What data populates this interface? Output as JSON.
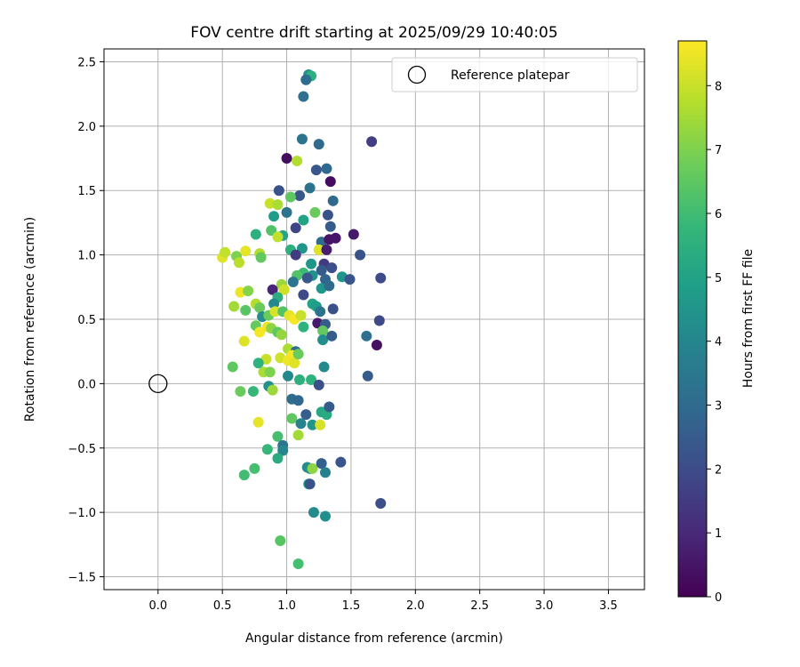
{
  "chart_data": {
    "type": "scatter",
    "title": "FOV centre drift starting at 2025/09/29 10:40:05",
    "xlabel": "Angular distance from reference (arcmin)",
    "ylabel": "Rotation from reference (arcmin)",
    "xlim": [
      -0.42,
      3.78
    ],
    "ylim": [
      -1.6,
      2.6
    ],
    "xticks": [
      0.0,
      0.5,
      1.0,
      1.5,
      2.0,
      2.5,
      3.0,
      3.5
    ],
    "yticks": [
      -1.5,
      -1.0,
      -0.5,
      0.0,
      0.5,
      1.0,
      1.5,
      2.0,
      2.5
    ],
    "grid": true,
    "legend": {
      "position": "top-right",
      "entries": [
        "Reference platepar"
      ]
    },
    "reference_point": {
      "x": 0.0,
      "y": 0.0
    },
    "colorbar": {
      "label": "Hours from first FF file",
      "colormap": "viridis",
      "range": [
        0,
        8.7
      ],
      "ticks": [
        0,
        1,
        2,
        3,
        4,
        5,
        6,
        7,
        8
      ]
    },
    "points": [
      [
        1.17,
        2.4,
        4.3
      ],
      [
        1.19,
        2.39,
        5.5
      ],
      [
        1.15,
        2.36,
        3.1
      ],
      [
        1.13,
        2.23,
        3.2
      ],
      [
        1.12,
        1.9,
        3.3
      ],
      [
        1.25,
        1.86,
        3.0
      ],
      [
        1.66,
        1.88,
        1.6
      ],
      [
        1.0,
        1.75,
        0.3
      ],
      [
        1.08,
        1.73,
        7.7
      ],
      [
        1.23,
        1.66,
        2.4
      ],
      [
        1.31,
        1.67,
        2.9
      ],
      [
        1.34,
        1.57,
        0.3
      ],
      [
        1.18,
        1.52,
        3.3
      ],
      [
        0.94,
        1.5,
        2.2
      ],
      [
        1.1,
        1.46,
        2.4
      ],
      [
        1.03,
        1.45,
        6.5
      ],
      [
        1.36,
        1.42,
        3.0
      ],
      [
        0.87,
        1.4,
        8.0
      ],
      [
        0.93,
        1.39,
        7.6
      ],
      [
        1.0,
        1.33,
        3.3
      ],
      [
        1.22,
        1.33,
        6.7
      ],
      [
        1.32,
        1.31,
        2.2
      ],
      [
        0.9,
        1.3,
        4.8
      ],
      [
        1.13,
        1.27,
        5.0
      ],
      [
        1.34,
        1.22,
        2.5
      ],
      [
        1.07,
        1.21,
        1.8
      ],
      [
        0.88,
        1.19,
        6.3
      ],
      [
        0.97,
        1.15,
        5.1
      ],
      [
        0.76,
        1.16,
        5.5
      ],
      [
        0.93,
        1.14,
        7.9
      ],
      [
        1.27,
        1.1,
        3.0
      ],
      [
        1.33,
        1.12,
        0.5
      ],
      [
        1.38,
        1.13,
        0.5
      ],
      [
        1.52,
        1.16,
        0.6
      ],
      [
        1.12,
        1.05,
        4.5
      ],
      [
        1.03,
        1.04,
        5.5
      ],
      [
        1.25,
        1.04,
        8.3
      ],
      [
        1.31,
        1.04,
        0.7
      ],
      [
        0.5,
        0.98,
        8.3
      ],
      [
        0.52,
        1.02,
        7.9
      ],
      [
        0.61,
        0.99,
        7.0
      ],
      [
        0.68,
        1.03,
        8.4
      ],
      [
        0.79,
        1.01,
        7.7
      ],
      [
        0.8,
        0.98,
        6.6
      ],
      [
        0.63,
        0.94,
        7.8
      ],
      [
        1.07,
        1.0,
        1.5
      ],
      [
        1.57,
        1.0,
        2.2
      ],
      [
        1.19,
        0.93,
        4.6
      ],
      [
        1.29,
        0.93,
        1.5
      ],
      [
        1.35,
        0.9,
        2.1
      ],
      [
        1.27,
        0.88,
        2.5
      ],
      [
        1.13,
        0.86,
        5.9
      ],
      [
        1.08,
        0.84,
        6.3
      ],
      [
        1.2,
        0.84,
        4.4
      ],
      [
        1.16,
        0.82,
        2.4
      ],
      [
        1.3,
        0.81,
        2.8
      ],
      [
        1.43,
        0.83,
        4.5
      ],
      [
        1.49,
        0.81,
        2.3
      ],
      [
        1.73,
        0.82,
        2.0
      ],
      [
        1.05,
        0.79,
        3.4
      ],
      [
        0.96,
        0.77,
        7.4
      ],
      [
        0.89,
        0.73,
        0.9
      ],
      [
        0.98,
        0.73,
        8.1
      ],
      [
        0.64,
        0.71,
        8.5
      ],
      [
        0.7,
        0.72,
        7.1
      ],
      [
        1.27,
        0.74,
        4.5
      ],
      [
        1.33,
        0.76,
        3.0
      ],
      [
        1.13,
        0.69,
        1.9
      ],
      [
        0.93,
        0.67,
        5.4
      ],
      [
        0.9,
        0.62,
        4.1
      ],
      [
        0.76,
        0.62,
        7.7
      ],
      [
        0.79,
        0.59,
        6.7
      ],
      [
        0.59,
        0.6,
        7.5
      ],
      [
        0.68,
        0.57,
        6.4
      ],
      [
        1.2,
        0.62,
        5.0
      ],
      [
        1.23,
        0.6,
        4.8
      ],
      [
        1.26,
        0.56,
        3.3
      ],
      [
        0.81,
        0.52,
        4.2
      ],
      [
        0.86,
        0.53,
        6.7
      ],
      [
        0.91,
        0.56,
        8.2
      ],
      [
        0.97,
        0.56,
        6.3
      ],
      [
        1.02,
        0.53,
        8.4
      ],
      [
        1.06,
        0.5,
        8.6
      ],
      [
        1.11,
        0.53,
        8.0
      ],
      [
        1.36,
        0.58,
        2.2
      ],
      [
        1.24,
        0.47,
        0.6
      ],
      [
        1.3,
        0.46,
        2.5
      ],
      [
        1.28,
        0.41,
        6.6
      ],
      [
        1.28,
        0.34,
        4.3
      ],
      [
        1.35,
        0.37,
        2.5
      ],
      [
        0.76,
        0.45,
        6.6
      ],
      [
        0.79,
        0.4,
        8.6
      ],
      [
        0.85,
        0.44,
        8.5
      ],
      [
        0.88,
        0.43,
        7.2
      ],
      [
        0.93,
        0.4,
        6.5
      ],
      [
        0.96,
        0.38,
        7.3
      ],
      [
        1.13,
        0.44,
        5.6
      ],
      [
        1.72,
        0.49,
        1.9
      ],
      [
        1.62,
        0.37,
        3.2
      ],
      [
        1.7,
        0.3,
        0.4
      ],
      [
        0.67,
        0.33,
        8.3
      ],
      [
        1.01,
        0.27,
        7.6
      ],
      [
        1.07,
        0.25,
        3.0
      ],
      [
        1.04,
        0.22,
        8.6
      ],
      [
        0.95,
        0.2,
        8.1
      ],
      [
        1.01,
        0.18,
        8.5
      ],
      [
        1.06,
        0.16,
        8.3
      ],
      [
        1.09,
        0.23,
        6.7
      ],
      [
        0.84,
        0.19,
        8.0
      ],
      [
        0.78,
        0.16,
        5.6
      ],
      [
        0.58,
        0.13,
        6.5
      ],
      [
        0.82,
        0.09,
        7.6
      ],
      [
        0.87,
        0.09,
        7.0
      ],
      [
        1.01,
        0.06,
        4.1
      ],
      [
        1.1,
        0.03,
        5.5
      ],
      [
        1.19,
        0.03,
        5.6
      ],
      [
        1.29,
        0.13,
        4.1
      ],
      [
        1.25,
        -0.01,
        2.1
      ],
      [
        1.63,
        0.06,
        2.5
      ],
      [
        0.64,
        -0.06,
        6.7
      ],
      [
        0.74,
        -0.06,
        5.8
      ],
      [
        0.86,
        -0.02,
        4.4
      ],
      [
        0.89,
        -0.05,
        7.4
      ],
      [
        1.04,
        -0.12,
        3.1
      ],
      [
        1.09,
        -0.13,
        2.9
      ],
      [
        1.15,
        -0.24,
        2.6
      ],
      [
        1.04,
        -0.27,
        6.5
      ],
      [
        1.11,
        -0.31,
        3.9
      ],
      [
        1.2,
        -0.32,
        4.5
      ],
      [
        1.27,
        -0.22,
        5.2
      ],
      [
        1.31,
        -0.24,
        5.3
      ],
      [
        1.33,
        -0.18,
        2.5
      ],
      [
        1.26,
        -0.32,
        8.2
      ],
      [
        0.78,
        -0.3,
        8.4
      ],
      [
        0.93,
        -0.41,
        6.1
      ],
      [
        1.09,
        -0.4,
        7.5
      ],
      [
        0.97,
        -0.48,
        3.4
      ],
      [
        0.97,
        -0.52,
        4.0
      ],
      [
        0.85,
        -0.51,
        5.8
      ],
      [
        0.93,
        -0.58,
        5.3
      ],
      [
        1.16,
        -0.65,
        4.2
      ],
      [
        1.18,
        -0.66,
        4.3
      ],
      [
        1.2,
        -0.66,
        7.2
      ],
      [
        1.27,
        -0.62,
        2.6
      ],
      [
        1.3,
        -0.69,
        3.8
      ],
      [
        1.42,
        -0.61,
        2.3
      ],
      [
        0.75,
        -0.66,
        6.1
      ],
      [
        0.67,
        -0.71,
        6.0
      ],
      [
        1.17,
        -0.78,
        5.1
      ],
      [
        1.18,
        -0.78,
        2.2
      ],
      [
        1.73,
        -0.93,
        2.1
      ],
      [
        1.21,
        -1.0,
        4.2
      ],
      [
        1.3,
        -1.03,
        4.3
      ],
      [
        0.95,
        -1.22,
        6.4
      ],
      [
        1.09,
        -1.4,
        6.1
      ]
    ]
  }
}
